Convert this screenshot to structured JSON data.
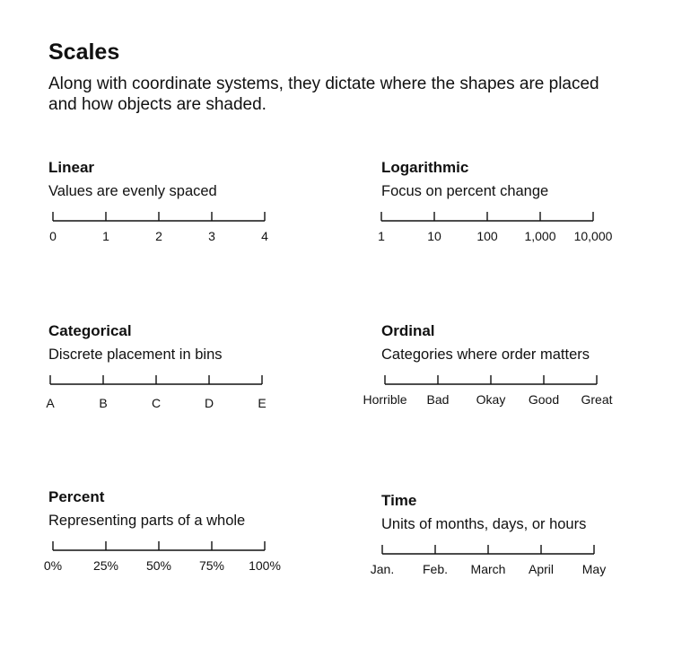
{
  "title": "Scales",
  "subtitle": "Along with coordinate systems, they dictate where the shapes are placed and how objects are shaded.",
  "panels": [
    {
      "id": "linear",
      "title": "Linear",
      "description": "Values are evenly spaced",
      "ticks": [
        "0",
        "1",
        "2",
        "3",
        "4"
      ]
    },
    {
      "id": "logarithmic",
      "title": "Logarithmic",
      "description": "Focus on percent change",
      "ticks": [
        "1",
        "10",
        "100",
        "1,000",
        "10,000"
      ]
    },
    {
      "id": "categorical",
      "title": "Categorical",
      "description": "Discrete placement in bins",
      "ticks": [
        "A",
        "B",
        "C",
        "D",
        "E"
      ]
    },
    {
      "id": "ordinal",
      "title": "Ordinal",
      "description": "Categories where order matters",
      "ticks": [
        "Horrible",
        "Bad",
        "Okay",
        "Good",
        "Great"
      ]
    },
    {
      "id": "percent",
      "title": "Percent",
      "description": "Representing parts of a whole",
      "ticks": [
        "0%",
        "25%",
        "50%",
        "75%",
        "100%"
      ]
    },
    {
      "id": "time",
      "title": "Time",
      "description": "Units of months, days, or hours",
      "ticks": [
        "Jan.",
        "Feb.",
        "March",
        "April",
        "May"
      ]
    }
  ]
}
